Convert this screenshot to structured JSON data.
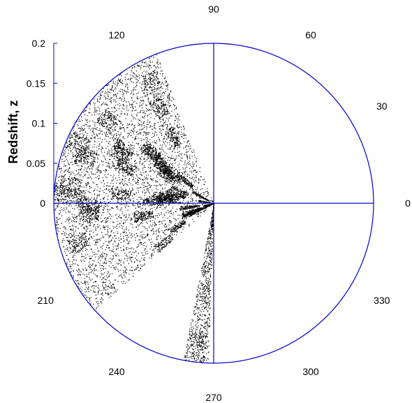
{
  "chart_data": {
    "type": "scatter",
    "projection": "polar",
    "title": "",
    "ylabel": "Redshift, z",
    "rlim": [
      0,
      0.2
    ],
    "r_ticks": [
      {
        "value": 0,
        "label": "0"
      },
      {
        "value": 0.05,
        "label": "0.05"
      },
      {
        "value": 0.1,
        "label": "0.1"
      },
      {
        "value": 0.15,
        "label": "0.15"
      },
      {
        "value": 0.2,
        "label": "0.2"
      }
    ],
    "angle_labels": [
      {
        "deg": 0,
        "label": "0"
      },
      {
        "deg": 30,
        "label": "30"
      },
      {
        "deg": 60,
        "label": "60"
      },
      {
        "deg": 90,
        "label": "90"
      },
      {
        "deg": 120,
        "label": "120"
      },
      {
        "deg": 210,
        "label": "210"
      },
      {
        "deg": 240,
        "label": "240"
      },
      {
        "deg": 270,
        "label": "270"
      },
      {
        "deg": 300,
        "label": "300"
      },
      {
        "deg": 330,
        "label": "330"
      }
    ],
    "axis_color": "#0000cc",
    "point_color": "#000000",
    "survey_regions": [
      {
        "name": "main wedge",
        "theta_min_deg": 111,
        "theta_max_deg": 222,
        "z_max": 0.2
      },
      {
        "name": "south strip",
        "theta_min_deg": 259,
        "theta_max_deg": 268,
        "z_max": 0.2
      }
    ],
    "grid": false,
    "legend": "none"
  }
}
